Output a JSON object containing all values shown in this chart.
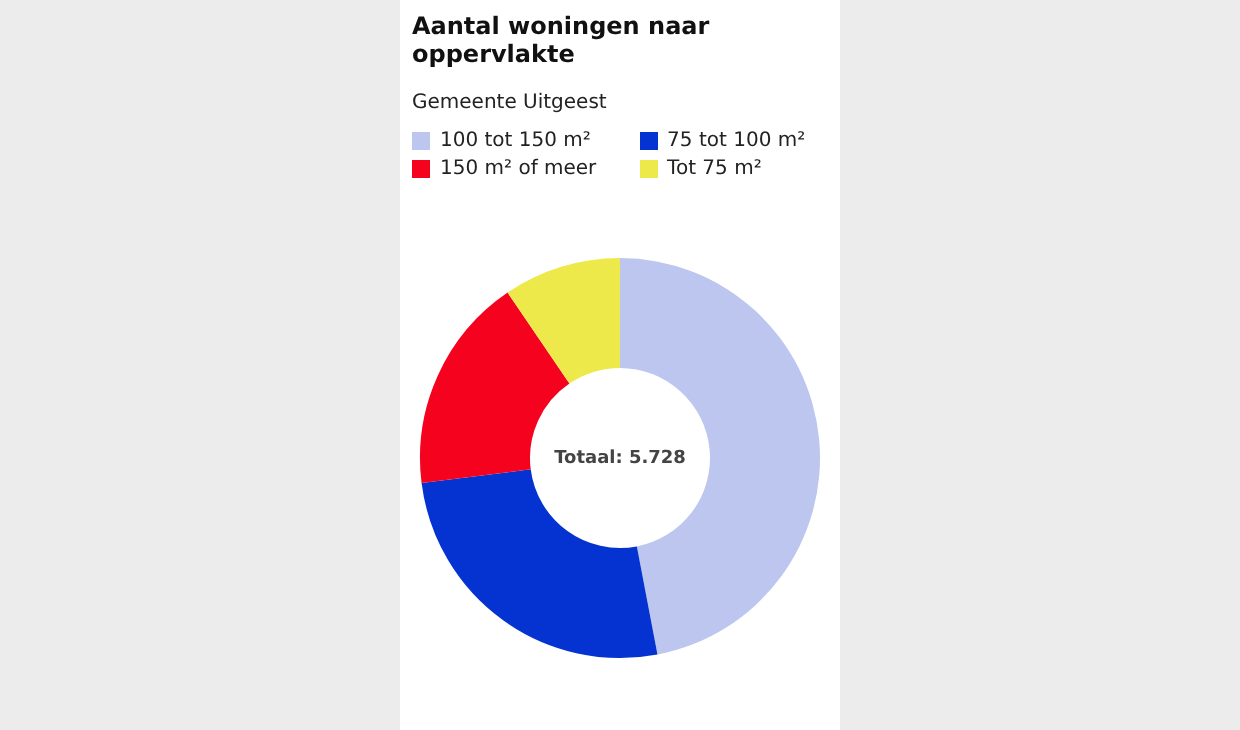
{
  "chart_data": {
    "type": "donut",
    "title": "Aantal woningen naar oppervlakte",
    "subtitle": "Gemeente Uitgeest",
    "categories": [
      "100 tot 150 m²",
      "75 tot 100 m²",
      "150 m² of meer",
      "Tot 75 m²"
    ],
    "values": [
      47,
      26,
      17.5,
      9.5
    ],
    "colors": [
      "#bcc6ee",
      "#0433d1",
      "#f5021f",
      "#ede94a"
    ],
    "annotations": [
      "Totaal: 5.728"
    ],
    "legend": "top"
  }
}
